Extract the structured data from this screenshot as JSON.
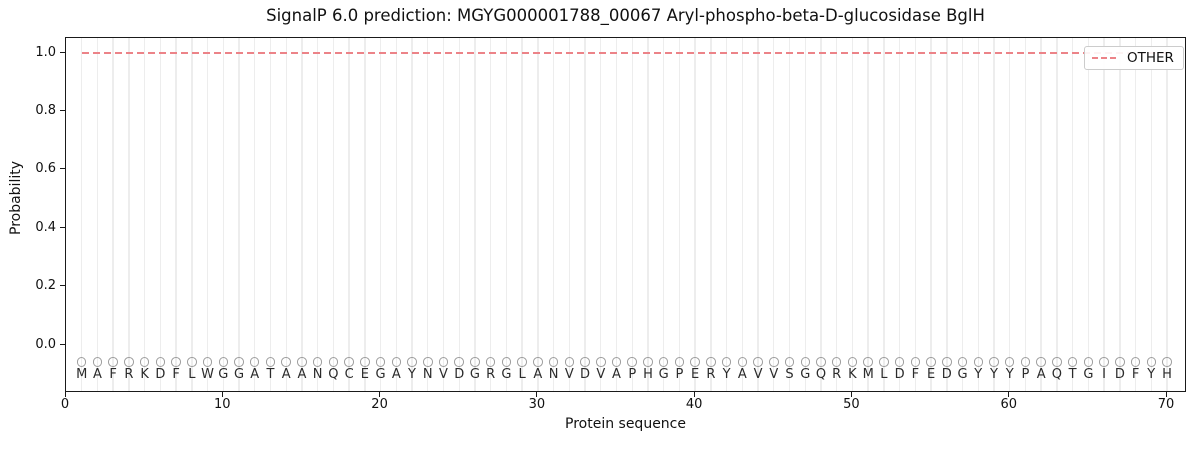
{
  "chart_data": {
    "type": "line",
    "title": "SignalP 6.0 prediction: MGYG000001788_00067 Aryl-phospho-beta-D-glucosidase BglH",
    "xlabel": "Protein sequence",
    "ylabel": "Probability",
    "xlim": [
      0,
      71.27
    ],
    "ylim": [
      -0.165,
      1.05
    ],
    "x_ticks": [
      "0",
      "10",
      "20",
      "30",
      "40",
      "50",
      "60",
      "70"
    ],
    "y_ticks": [
      "0.0",
      "0.2",
      "0.4",
      "0.6",
      "0.8",
      "1.0"
    ],
    "grid": "vertical gridline at every residue position",
    "legend_position": "upper right",
    "sequence": "MAFRKDFLWGGATAANQCEGAYNVDGRGLANVDVAPHGPERYAVVSGQRKMLDFEDGYYYPAQTGIDFYH",
    "sequence_length": 70,
    "series": [
      {
        "name": "OTHER",
        "linestyle": "dashed",
        "color": "#ec8388",
        "x_start": 1,
        "x_end": 70,
        "constant_y": 1.0,
        "note": "flat line at probability 1.0 across all 70 residues"
      }
    ],
    "residue_markers": {
      "symbol": "open-circle",
      "y": -0.058,
      "color": "#9e9e9e",
      "count": 70
    },
    "colors": {
      "other_line": "#ec8388",
      "gridline": "#ededed",
      "marker_edge": "#9e9e9e",
      "spine": "#1a1a1a",
      "text": "#111111"
    }
  },
  "legend": {
    "entries": [
      {
        "label": "OTHER",
        "color": "#ec8388",
        "dashed": true
      }
    ]
  }
}
